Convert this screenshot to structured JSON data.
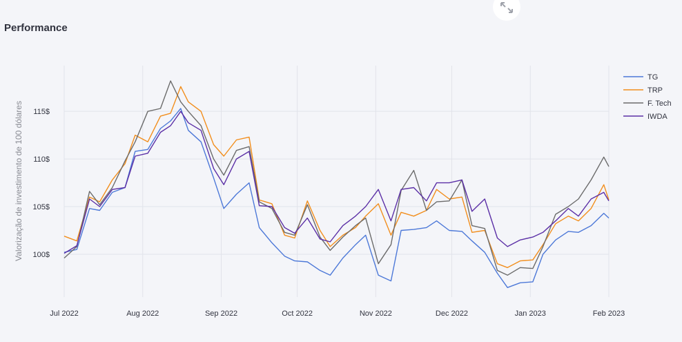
{
  "title": "Performance",
  "chart_data": {
    "type": "line",
    "ylabel": "Valorização de investimento de 100 dólares",
    "ylim": [
      95.5,
      119.8
    ],
    "yticks": [
      100,
      105,
      110,
      115
    ],
    "ytick_labels": [
      "100$",
      "105$",
      "110$",
      "115$"
    ],
    "xlim": [
      "2022-07-01",
      "2023-02-01"
    ],
    "xticks": [
      "2022-07-01",
      "2022-08-01",
      "2022-09-01",
      "2022-10-01",
      "2022-11-01",
      "2022-12-01",
      "2023-01-01",
      "2023-02-01"
    ],
    "xtick_labels": [
      "Jul 2022",
      "Aug 2022",
      "Sep 2022",
      "Oct 2022",
      "Nov 2022",
      "Dec 2022",
      "Jan 2023",
      "Feb 2023"
    ],
    "legend_position": "top-right",
    "series": [
      {
        "name": "TG",
        "color": "#4c78d8",
        "x": [
          "2022-07-01",
          "2022-07-06",
          "2022-07-11",
          "2022-07-15",
          "2022-07-20",
          "2022-07-25",
          "2022-07-29",
          "2022-08-03",
          "2022-08-08",
          "2022-08-12",
          "2022-08-16",
          "2022-08-19",
          "2022-08-24",
          "2022-08-29",
          "2022-09-02",
          "2022-09-07",
          "2022-09-12",
          "2022-09-16",
          "2022-09-21",
          "2022-09-26",
          "2022-09-30",
          "2022-10-05",
          "2022-10-10",
          "2022-10-14",
          "2022-10-19",
          "2022-10-24",
          "2022-10-28",
          "2022-11-02",
          "2022-11-07",
          "2022-11-11",
          "2022-11-16",
          "2022-11-21",
          "2022-11-25",
          "2022-11-30",
          "2022-12-05",
          "2022-12-09",
          "2022-12-14",
          "2022-12-19",
          "2022-12-23",
          "2022-12-28",
          "2023-01-02",
          "2023-01-06",
          "2023-01-11",
          "2023-01-16",
          "2023-01-20",
          "2023-01-25",
          "2023-01-30",
          "2023-02-01"
        ],
        "values": [
          100.2,
          100.5,
          104.8,
          104.6,
          106.5,
          107.0,
          110.8,
          111.0,
          113.2,
          114.0,
          115.3,
          113.0,
          111.8,
          108.0,
          104.8,
          106.3,
          107.5,
          102.8,
          101.2,
          99.8,
          99.3,
          99.2,
          98.3,
          97.8,
          99.6,
          101.0,
          102.0,
          97.8,
          97.2,
          102.5,
          102.6,
          102.8,
          103.5,
          102.5,
          102.4,
          101.4,
          100.2,
          98.0,
          96.5,
          97.0,
          97.1,
          100.0,
          101.5,
          102.4,
          102.3,
          103.0,
          104.3,
          103.8
        ]
      },
      {
        "name": "TRP",
        "color": "#f28e1c",
        "x": [
          "2022-07-01",
          "2022-07-06",
          "2022-07-11",
          "2022-07-15",
          "2022-07-20",
          "2022-07-25",
          "2022-07-29",
          "2022-08-03",
          "2022-08-08",
          "2022-08-12",
          "2022-08-16",
          "2022-08-19",
          "2022-08-24",
          "2022-08-29",
          "2022-09-02",
          "2022-09-07",
          "2022-09-12",
          "2022-09-16",
          "2022-09-21",
          "2022-09-26",
          "2022-09-30",
          "2022-10-05",
          "2022-10-10",
          "2022-10-14",
          "2022-10-19",
          "2022-10-24",
          "2022-10-28",
          "2022-11-02",
          "2022-11-07",
          "2022-11-11",
          "2022-11-16",
          "2022-11-21",
          "2022-11-25",
          "2022-11-30",
          "2022-12-05",
          "2022-12-09",
          "2022-12-14",
          "2022-12-19",
          "2022-12-23",
          "2022-12-28",
          "2023-01-02",
          "2023-01-06",
          "2023-01-11",
          "2023-01-16",
          "2023-01-20",
          "2023-01-25",
          "2023-01-30",
          "2023-02-01"
        ],
        "values": [
          101.9,
          101.4,
          106.0,
          105.5,
          107.8,
          109.5,
          112.5,
          111.8,
          114.5,
          114.8,
          117.6,
          116.0,
          115.0,
          111.5,
          110.3,
          112.0,
          112.3,
          105.7,
          105.3,
          102.0,
          101.7,
          105.6,
          102.5,
          100.8,
          102.0,
          102.8,
          104.0,
          105.3,
          102.0,
          104.4,
          104.0,
          104.6,
          106.8,
          105.8,
          106.0,
          102.3,
          102.5,
          99.0,
          98.6,
          99.3,
          99.4,
          101.0,
          103.2,
          104.0,
          103.5,
          104.8,
          107.3,
          105.7
        ]
      },
      {
        "name": "F. Tech",
        "color": "#6b6b6b",
        "x": [
          "2022-07-01",
          "2022-07-06",
          "2022-07-11",
          "2022-07-15",
          "2022-07-20",
          "2022-07-25",
          "2022-07-29",
          "2022-08-03",
          "2022-08-08",
          "2022-08-12",
          "2022-08-16",
          "2022-08-19",
          "2022-08-24",
          "2022-08-29",
          "2022-09-02",
          "2022-09-07",
          "2022-09-12",
          "2022-09-16",
          "2022-09-21",
          "2022-09-26",
          "2022-09-30",
          "2022-10-05",
          "2022-10-10",
          "2022-10-14",
          "2022-10-19",
          "2022-10-24",
          "2022-10-28",
          "2022-11-02",
          "2022-11-07",
          "2022-11-11",
          "2022-11-16",
          "2022-11-21",
          "2022-11-25",
          "2022-11-30",
          "2022-12-05",
          "2022-12-09",
          "2022-12-14",
          "2022-12-19",
          "2022-12-23",
          "2022-12-28",
          "2023-01-02",
          "2023-01-06",
          "2023-01-11",
          "2023-01-16",
          "2023-01-20",
          "2023-01-25",
          "2023-01-30",
          "2023-02-01"
        ],
        "values": [
          99.6,
          100.8,
          106.6,
          105.2,
          107.0,
          109.8,
          111.8,
          115.0,
          115.3,
          118.2,
          116.0,
          115.0,
          113.5,
          110.0,
          108.3,
          110.9,
          111.3,
          105.5,
          104.8,
          102.3,
          102.0,
          105.2,
          101.8,
          100.4,
          101.8,
          103.0,
          103.8,
          99.0,
          101.0,
          106.7,
          108.8,
          104.6,
          105.5,
          105.6,
          107.8,
          103.0,
          102.7,
          98.3,
          97.8,
          98.6,
          98.5,
          100.8,
          104.2,
          105.0,
          105.8,
          107.8,
          110.2,
          109.2
        ]
      },
      {
        "name": "IWDA",
        "color": "#5b2fa6",
        "x": [
          "2022-07-01",
          "2022-07-06",
          "2022-07-11",
          "2022-07-15",
          "2022-07-20",
          "2022-07-25",
          "2022-07-29",
          "2022-08-03",
          "2022-08-08",
          "2022-08-12",
          "2022-08-16",
          "2022-08-19",
          "2022-08-24",
          "2022-08-29",
          "2022-09-02",
          "2022-09-07",
          "2022-09-12",
          "2022-09-16",
          "2022-09-21",
          "2022-09-26",
          "2022-09-30",
          "2022-10-05",
          "2022-10-10",
          "2022-10-14",
          "2022-10-19",
          "2022-10-24",
          "2022-10-28",
          "2022-11-02",
          "2022-11-07",
          "2022-11-11",
          "2022-11-16",
          "2022-11-21",
          "2022-11-25",
          "2022-11-30",
          "2022-12-05",
          "2022-12-09",
          "2022-12-14",
          "2022-12-19",
          "2022-12-23",
          "2022-12-28",
          "2023-01-02",
          "2023-01-06",
          "2023-01-11",
          "2023-01-16",
          "2023-01-20",
          "2023-01-25",
          "2023-01-30",
          "2023-02-01"
        ],
        "values": [
          100.1,
          100.9,
          105.8,
          105.0,
          106.8,
          107.0,
          110.3,
          110.6,
          112.8,
          113.5,
          115.0,
          113.8,
          113.0,
          109.0,
          107.3,
          110.0,
          110.8,
          105.1,
          105.0,
          102.8,
          102.2,
          103.8,
          101.6,
          101.3,
          103.0,
          104.0,
          105.0,
          106.8,
          103.5,
          106.8,
          107.0,
          105.6,
          107.5,
          107.5,
          107.8,
          104.5,
          105.8,
          101.7,
          100.8,
          101.5,
          101.8,
          102.3,
          103.5,
          104.8,
          104.0,
          105.8,
          106.5,
          105.6
        ]
      }
    ]
  }
}
